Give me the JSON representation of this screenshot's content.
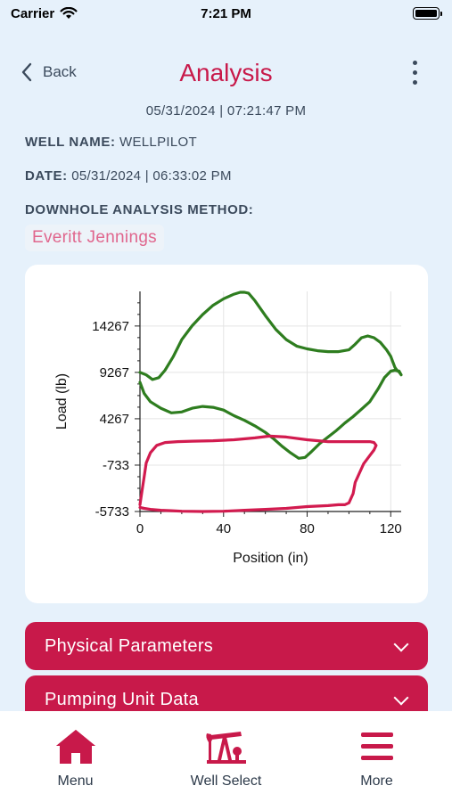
{
  "status_bar": {
    "carrier": "Carrier",
    "time": "7:21 PM"
  },
  "header": {
    "back_label": "Back",
    "title": "Analysis"
  },
  "timestamp": "05/31/2024 | 07:21:47 PM",
  "info": {
    "well_name_label": "WELL NAME:",
    "well_name_value": "WELLPILOT",
    "date_label": "DATE:",
    "date_value": "05/31/2024 | 06:33:02 PM",
    "method_label": "DOWNHOLE ANALYSIS METHOD:",
    "method_value": "Everitt Jennings"
  },
  "colors": {
    "accent": "#c8194a",
    "surface_card": "#2e7d1f",
    "downhole_card": "#d21b4f",
    "background": "#e6f1fb"
  },
  "chart_data": {
    "type": "line",
    "xlabel": "Position (in)",
    "ylabel": "Load (lb)",
    "xlim": [
      0,
      125
    ],
    "ylim": [
      -5733,
      18000
    ],
    "x_ticks": [
      0,
      40,
      80,
      120
    ],
    "y_ticks": [
      -5733,
      -733,
      4267,
      9267,
      14267
    ],
    "series": [
      {
        "color": "#2e7d1f",
        "x": [
          0,
          3,
          6,
          9,
          12,
          16,
          20,
          25,
          30,
          35,
          40,
          45,
          48,
          50,
          52,
          55,
          60,
          65,
          70,
          75,
          80,
          85,
          90,
          95,
          100,
          103,
          106,
          109,
          112,
          115,
          118,
          120,
          121,
          122,
          123,
          124,
          125,
          124,
          122,
          120,
          117,
          114,
          110,
          106,
          102,
          98,
          94,
          90,
          86,
          82,
          79,
          76,
          72,
          68,
          64,
          60,
          55,
          50,
          45,
          40,
          35,
          30,
          25,
          20,
          15,
          10,
          5,
          2,
          0
        ],
        "y": [
          9267,
          9000,
          8500,
          8700,
          9500,
          11000,
          12800,
          14300,
          15500,
          16500,
          17200,
          17700,
          17900,
          17900,
          17800,
          17000,
          15400,
          13900,
          12800,
          12100,
          11800,
          11600,
          11500,
          11500,
          11700,
          12300,
          13000,
          13200,
          13000,
          12500,
          11700,
          11000,
          10400,
          9800,
          9500,
          9300,
          9000,
          9400,
          9500,
          9400,
          8700,
          7500,
          6100,
          5300,
          4500,
          3800,
          3000,
          2300,
          1600,
          700,
          100,
          0,
          600,
          1300,
          2100,
          2800,
          3500,
          4100,
          4600,
          5200,
          5500,
          5600,
          5400,
          5000,
          4900,
          5400,
          6100,
          7000,
          8200
        ]
      },
      {
        "color": "#d21b4f",
        "x": [
          0,
          1,
          2,
          3,
          5,
          8,
          12,
          18,
          25,
          35,
          45,
          55,
          62,
          70,
          80,
          90,
          100,
          110,
          112,
          113,
          112,
          110,
          107,
          105,
          103,
          102,
          100,
          98,
          95,
          90,
          80,
          70,
          60,
          50,
          40,
          30,
          20,
          15,
          10,
          5,
          2,
          0
        ],
        "y": [
          -5000,
          -3500,
          -2000,
          -500,
          600,
          1400,
          1700,
          1800,
          1850,
          1900,
          2000,
          2200,
          2400,
          2300,
          2000,
          1800,
          1800,
          1800,
          1700,
          1400,
          900,
          300,
          -600,
          -1600,
          -2600,
          -3800,
          -4800,
          -5000,
          -5000,
          -5100,
          -5200,
          -5400,
          -5500,
          -5600,
          -5700,
          -5733,
          -5700,
          -5650,
          -5600,
          -5500,
          -5400,
          -5300
        ]
      }
    ]
  },
  "accordions": [
    {
      "label": "Physical Parameters"
    },
    {
      "label": "Pumping Unit Data"
    }
  ],
  "tabs": [
    {
      "label": "Menu",
      "icon": "home-icon"
    },
    {
      "label": "Well Select",
      "icon": "pumpjack-icon"
    },
    {
      "label": "More",
      "icon": "hamburger-icon"
    }
  ]
}
